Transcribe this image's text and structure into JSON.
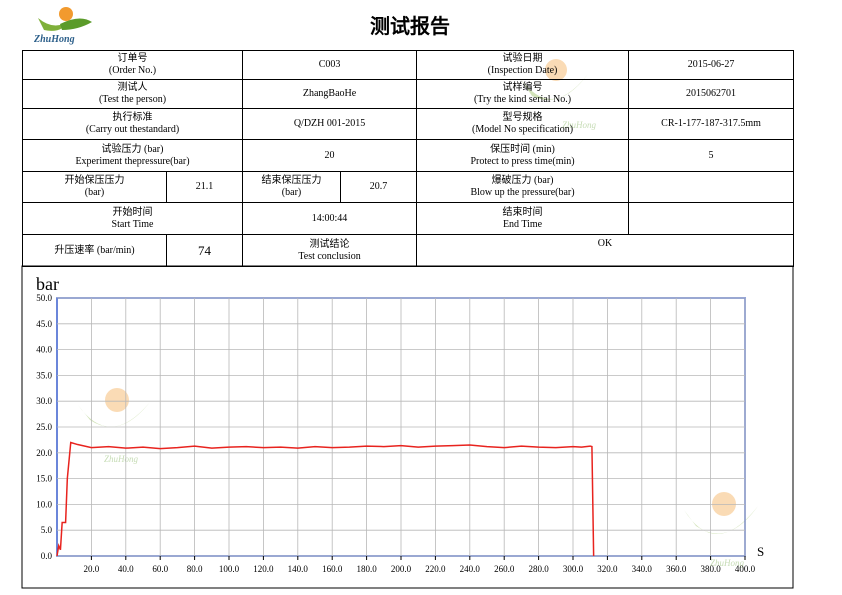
{
  "header": {
    "logo": "ZhuHong",
    "title": "测试报告"
  },
  "table": {
    "rows": [
      [
        "订单号\n(Order No.)",
        "C003",
        "试验日期\n(Inspection Date)",
        "2015-06-27"
      ],
      [
        "测试人\n(Test the person)",
        "ZhangBaoHe",
        "试样编号\n(Try the kind serial No.)",
        "2015062701"
      ],
      [
        "执行标准\n(Carry out thestandard)",
        "Q/DZH 001-2015",
        "型号规格\n(Model No specification)",
        "CR-1-177-187-317.5mm"
      ],
      [
        "试验压力 (bar)\nExperiment thepressure(bar)",
        "20",
        "保压时间 (min)\nProtect to press time(min)",
        "5"
      ],
      [
        "开始保压压力\n(bar)",
        "21.1",
        "结束保压压力\n(bar)",
        "20.7",
        "爆破压力 (bar)\nBlow up the pressure(bar)"
      ],
      [
        "开始时间\nStart Time",
        "14:00:44",
        "结束时间\nEnd Time"
      ],
      [
        "升压速率 (bar/min)",
        "74",
        "测试结论\nTest conclusion",
        "OK"
      ]
    ]
  },
  "chart_data": {
    "type": "line",
    "y_label": "bar",
    "x_label": "S",
    "color": "#e8231e",
    "x": [
      0,
      1,
      2,
      3,
      4,
      5,
      6,
      8,
      12,
      20,
      30,
      40,
      50,
      60,
      70,
      80,
      90,
      100,
      110,
      120,
      130,
      140,
      150,
      160,
      170,
      180,
      190,
      200,
      210,
      220,
      230,
      240,
      250,
      260,
      270,
      280,
      290,
      300,
      305,
      310,
      311,
      312
    ],
    "values": [
      0,
      2.0,
      1.2,
      6.5,
      6.5,
      6.5,
      15,
      22.0,
      21.6,
      21.0,
      21.2,
      20.9,
      21.1,
      20.8,
      21.0,
      21.3,
      20.9,
      21.1,
      21.2,
      21.0,
      21.1,
      20.9,
      21.2,
      21.0,
      21.1,
      21.3,
      21.2,
      21.4,
      21.1,
      21.3,
      21.4,
      21.5,
      21.2,
      21.0,
      21.3,
      21.1,
      21.0,
      21.2,
      21.1,
      21.3,
      21.2,
      0
    ],
    "xlim": [
      0,
      400
    ],
    "ylim": [
      0,
      50
    ],
    "xticks": [
      {
        "value": 20,
        "label": "20.0"
      },
      {
        "value": 40,
        "label": "40.0"
      },
      {
        "value": 60,
        "label": "60.0"
      },
      {
        "value": 80,
        "label": "80.0"
      },
      {
        "value": 100,
        "label": "100.0"
      },
      {
        "value": 120,
        "label": "120.0"
      },
      {
        "value": 140,
        "label": "140.0"
      },
      {
        "value": 160,
        "label": "160.0"
      },
      {
        "value": 180,
        "label": "180.0"
      },
      {
        "value": 200,
        "label": "200.0"
      },
      {
        "value": 220,
        "label": "220.0"
      },
      {
        "value": 240,
        "label": "240.0"
      },
      {
        "value": 260,
        "label": "260.0"
      },
      {
        "value": 280,
        "label": "280.0"
      },
      {
        "value": 300,
        "label": "300.0"
      },
      {
        "value": 320,
        "label": "320.0"
      },
      {
        "value": 340,
        "label": "340.0"
      },
      {
        "value": 360,
        "label": "360.0"
      },
      {
        "value": 380,
        "label": "380.0"
      },
      {
        "value": 400,
        "label": "400.0"
      }
    ],
    "yticks": [
      {
        "value": 0,
        "label": "0.0"
      },
      {
        "value": 5,
        "label": "5.0"
      },
      {
        "value": 10,
        "label": "10.0"
      },
      {
        "value": 15,
        "label": "15.0"
      },
      {
        "value": 20,
        "label": "20.0"
      },
      {
        "value": 25,
        "label": "25.0"
      },
      {
        "value": 30,
        "label": "30.0"
      },
      {
        "value": 35,
        "label": "35.0"
      },
      {
        "value": 40,
        "label": "40.0"
      },
      {
        "value": 45,
        "label": "45.0"
      },
      {
        "value": 50,
        "label": "50.0"
      }
    ],
    "grid": true
  }
}
